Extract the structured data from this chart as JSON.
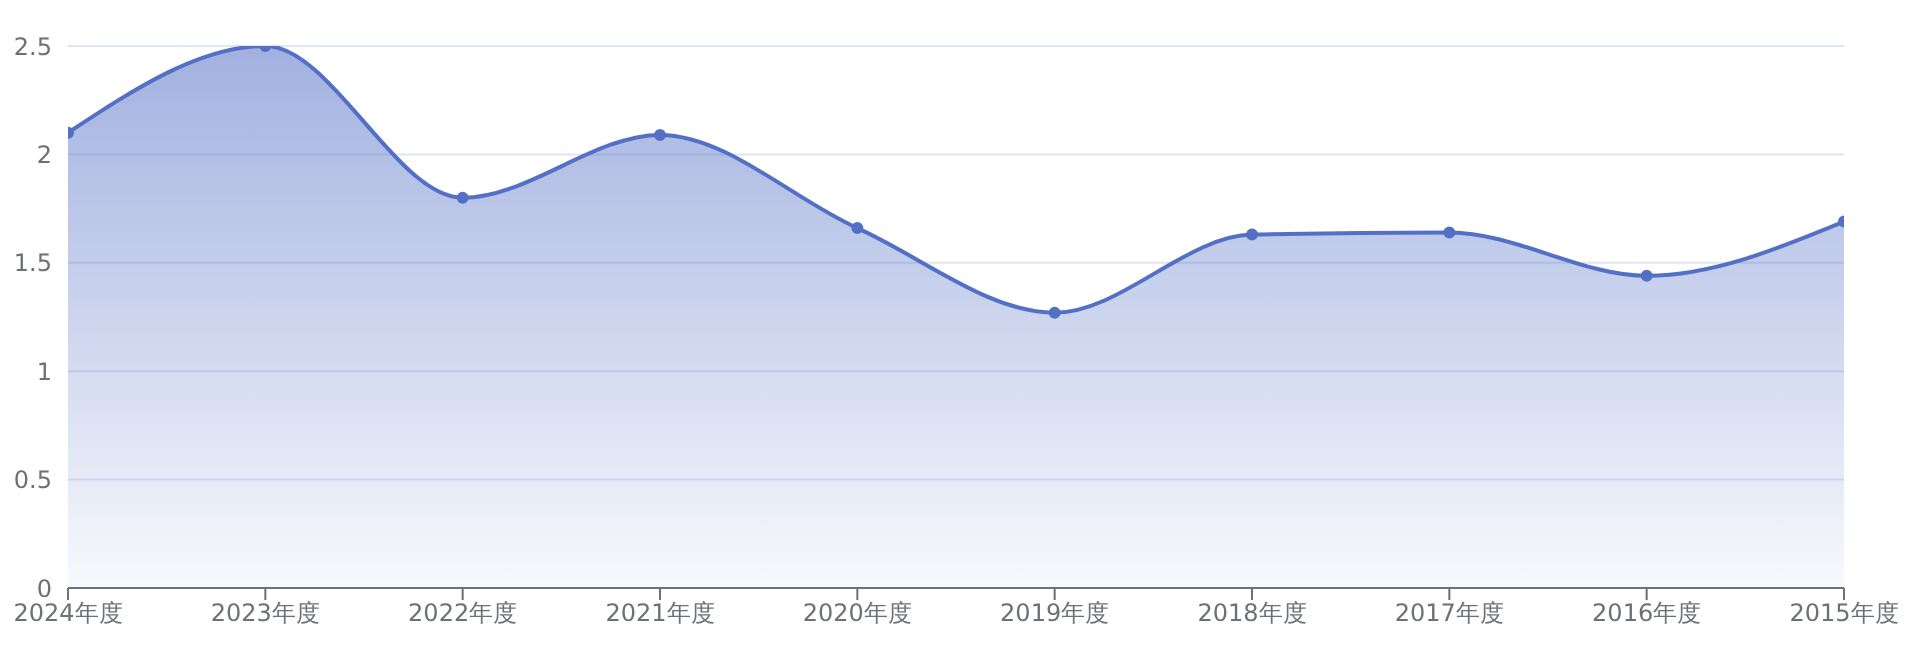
{
  "chart_data": {
    "type": "area",
    "categories": [
      "2024年度",
      "2023年度",
      "2022年度",
      "2021年度",
      "2020年度",
      "2019年度",
      "2018年度",
      "2017年度",
      "2016年度",
      "2015年度"
    ],
    "series": [
      {
        "color": "#5470c6",
        "values": [
          2.1,
          2.5,
          1.8,
          2.09,
          1.66,
          1.27,
          1.63,
          1.64,
          1.44,
          1.69
        ]
      }
    ],
    "ylim": [
      0,
      2.5
    ],
    "yticks": [
      0,
      0.5,
      1,
      1.5,
      2,
      2.5
    ],
    "grid": "y",
    "marker": "circle",
    "line_style": "solid"
  }
}
